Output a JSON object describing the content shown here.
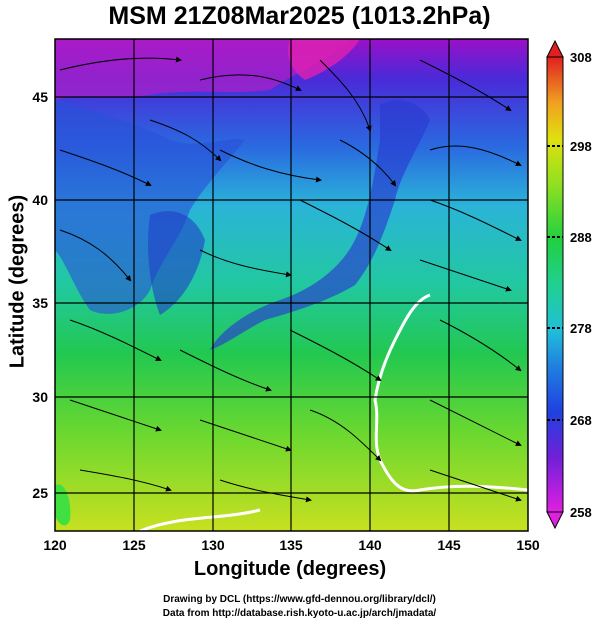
{
  "title": "MSM 21Z08Mar2025 (1013.2hPa)",
  "x_axis": {
    "label": "Longitude (degrees)",
    "ticks": [
      "120",
      "125",
      "130",
      "135",
      "140",
      "145",
      "150"
    ]
  },
  "y_axis": {
    "label": "Latitude  (degrees)",
    "ticks": [
      "25",
      "30",
      "35",
      "40",
      "45"
    ]
  },
  "colorbar": {
    "ticks": [
      "308",
      "298",
      "288",
      "278",
      "268",
      "258"
    ]
  },
  "credits": {
    "line1": "Drawing by DCL (https://www.gfd-dennou.org/library/dcl/)",
    "line2": "Data from http://database.rish.kyoto-u.ac.jp/arch/jmadata/"
  },
  "colors": {
    "cold": "#c000c0",
    "cool": "#3030e0",
    "mild": "#20c0d0",
    "warm": "#20d040",
    "hot": "#e0e000",
    "hottest": "#e03030"
  }
}
